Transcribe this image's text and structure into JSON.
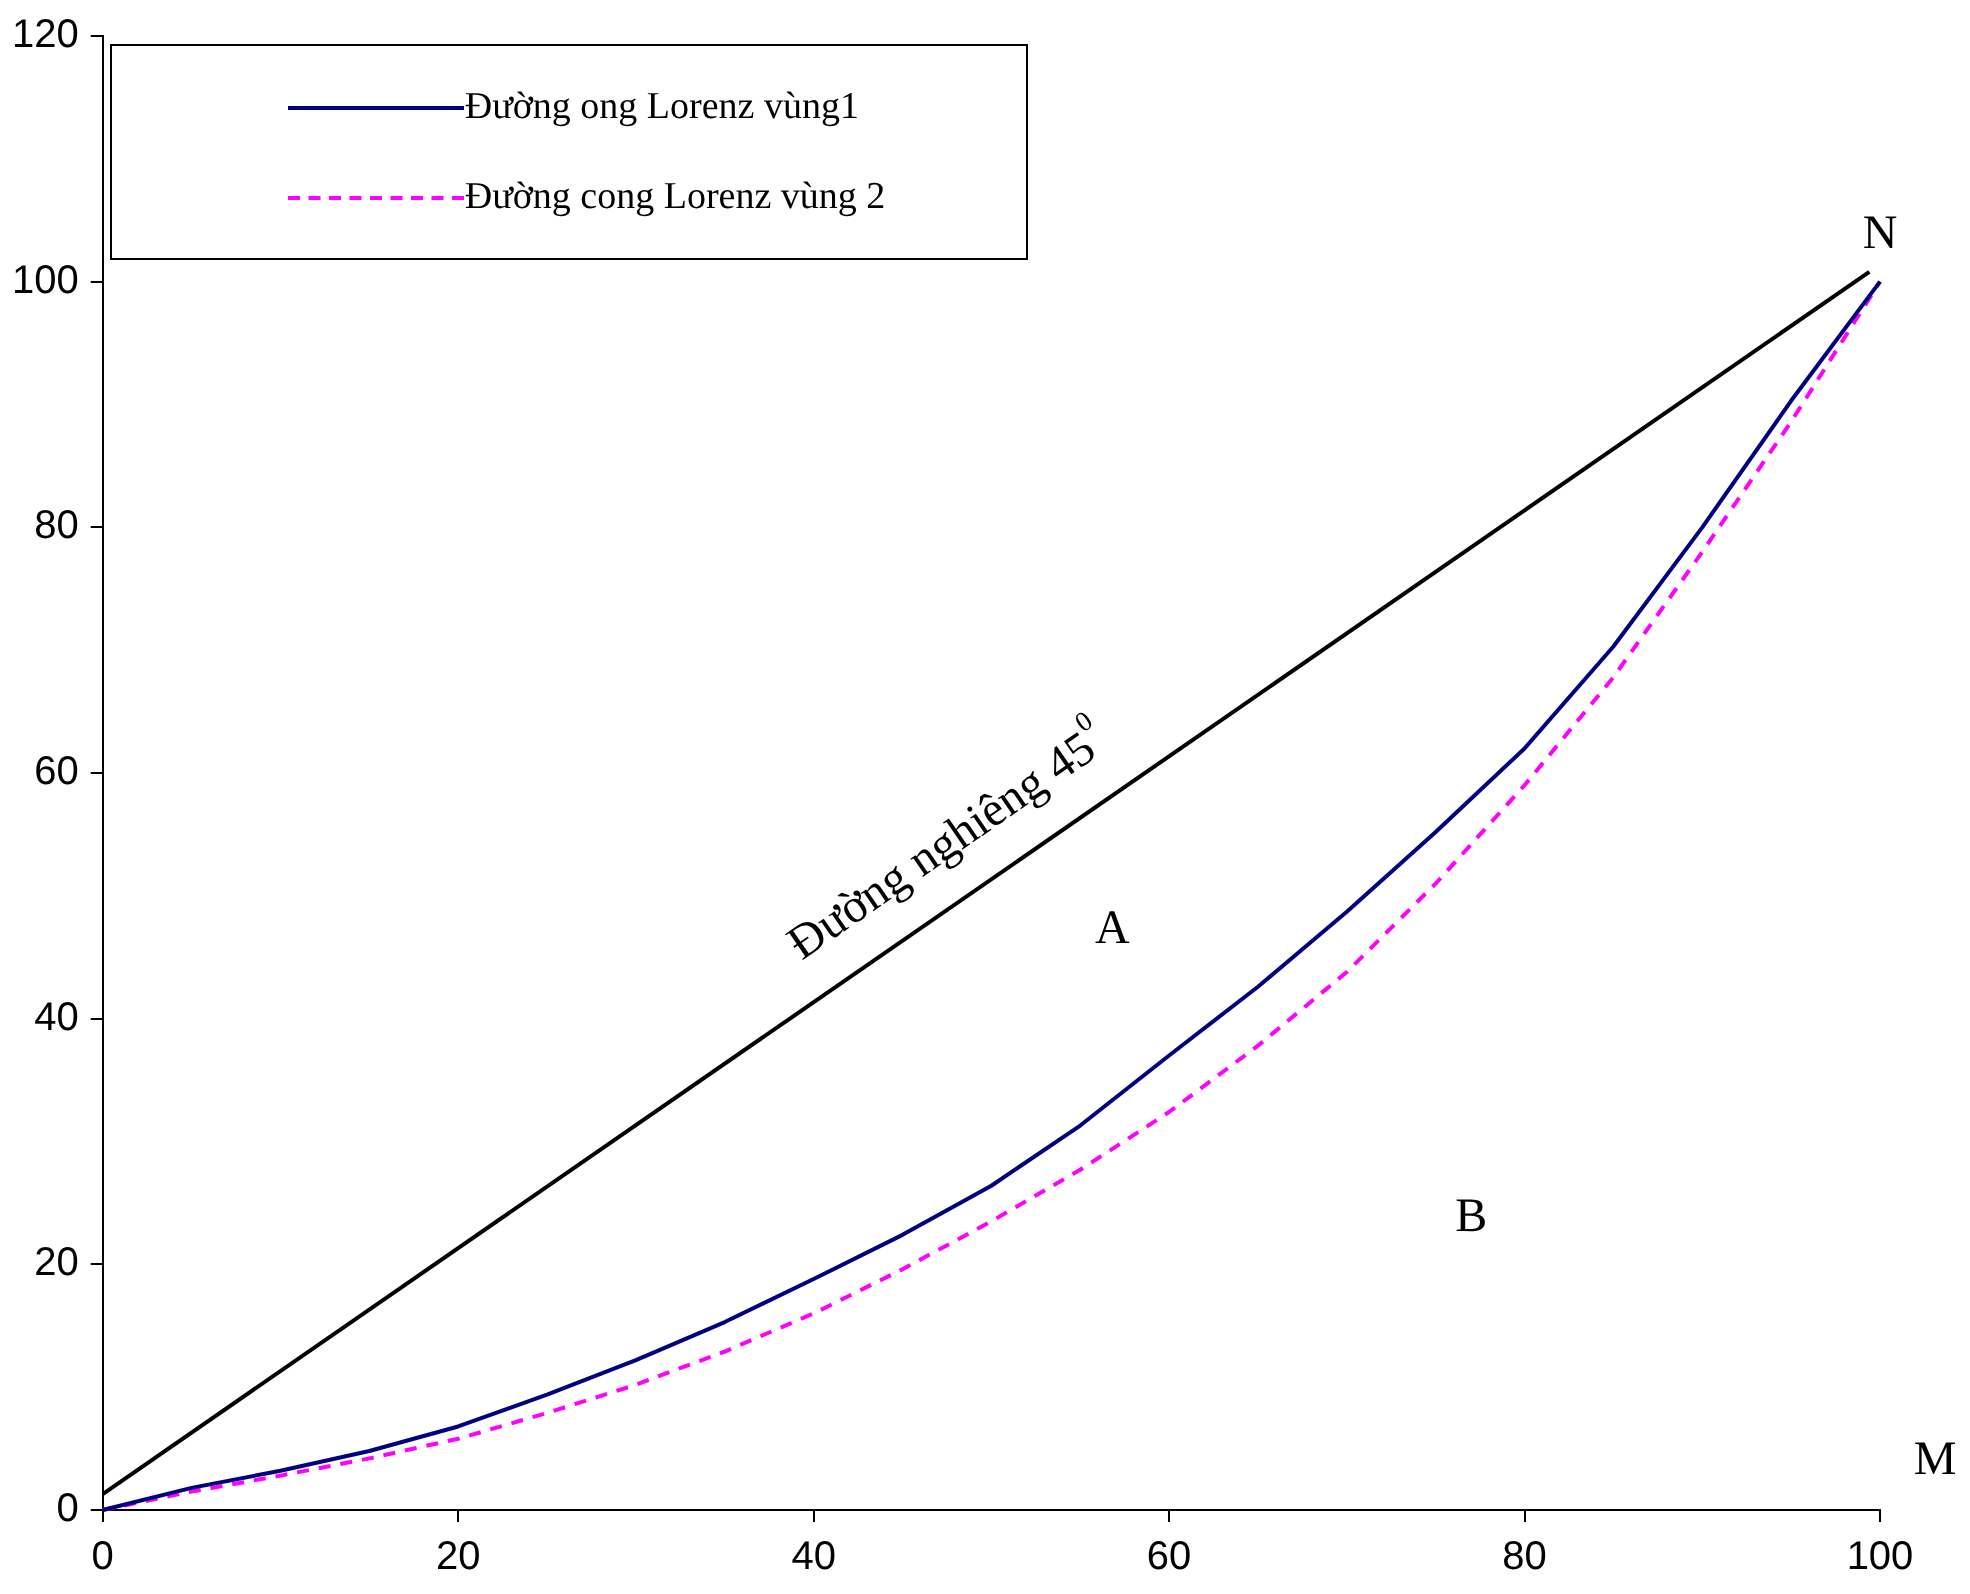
{
  "chart_data": {
    "type": "line",
    "xlim": [
      0,
      100
    ],
    "ylim": [
      0,
      120
    ],
    "xticks": [
      0,
      20,
      40,
      60,
      80,
      100
    ],
    "yticks": [
      0,
      20,
      40,
      60,
      80,
      100,
      120
    ],
    "grid": false,
    "legend": "top left",
    "marker": "none",
    "series": [
      {
        "name": "Đường ong Lorenz vùng1",
        "color": "#000080",
        "line_style": "solid",
        "x": [
          0,
          5,
          10,
          15,
          20,
          25,
          30,
          35,
          40,
          45,
          50,
          55,
          60,
          65,
          70,
          75,
          80,
          85,
          90,
          95,
          100
        ],
        "values": [
          0,
          1.8,
          3.2,
          4.8,
          6.8,
          9.4,
          12.2,
          15.3,
          18.8,
          22.4,
          26.4,
          31.3,
          37,
          42.6,
          48.7,
          55.2,
          62,
          70.3,
          80,
          90.3,
          100
        ]
      },
      {
        "name": "Đường cong Lorenz vùng 2",
        "color": "#ff00ff",
        "line_style": "dashed",
        "x": [
          0,
          5,
          10,
          15,
          20,
          25,
          30,
          35,
          40,
          45,
          50,
          55,
          60,
          65,
          70,
          75,
          80,
          85,
          90,
          95,
          100
        ],
        "values": [
          0,
          1.5,
          2.8,
          4.2,
          5.8,
          7.9,
          10.2,
          12.9,
          16,
          19.6,
          23.5,
          27.7,
          32.4,
          37.8,
          43.8,
          51,
          59,
          67.8,
          78,
          88.6,
          100
        ]
      },
      {
        "color": "#000000",
        "line_style": "solid",
        "x": [
          0,
          99.4
        ],
        "values": [
          1.3,
          100.8
        ]
      }
    ],
    "annotations": [
      "Đường nghiêng 45$^{0}$",
      "A",
      "B",
      "N",
      "M"
    ]
  }
}
